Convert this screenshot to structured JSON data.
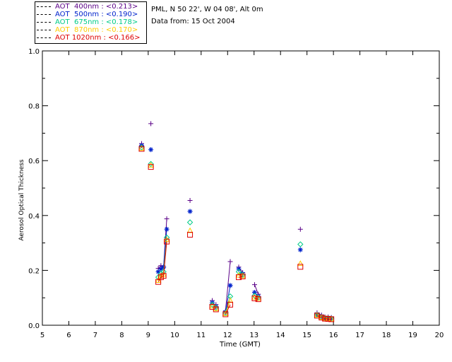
{
  "station": {
    "line1": "PML, N 50 22', W 04 08', Alt 0m",
    "line2": "Data from: 15 Oct 2004"
  },
  "legend": [
    {
      "label": "AOT  400nm : <0.213>",
      "color": "#5a0087"
    },
    {
      "label": "AOT  500nm : <0.190>",
      "color": "#0022cc"
    },
    {
      "label": "AOT  675nm : <0.178>",
      "color": "#00cc88"
    },
    {
      "label": "AOT  870nm : <0.170>",
      "color": "#ffcc00"
    },
    {
      "label": "AOT 1020nm : <0.166>",
      "color": "#dd0000"
    }
  ],
  "chart_data": {
    "type": "scatter",
    "xlabel": "Time (GMT)",
    "ylabel": "Aerosol Optical Thickness",
    "xlim": [
      5,
      20
    ],
    "ylim": [
      0.0,
      1.0
    ],
    "xticks": [
      "5",
      "6",
      "7",
      "8",
      "9",
      "10",
      "11",
      "12",
      "13",
      "14",
      "15",
      "16",
      "17",
      "18",
      "19",
      "20"
    ],
    "yticks": [
      "0.0",
      "0.2",
      "0.4",
      "0.6",
      "0.8",
      "1.0"
    ],
    "x": [
      8.75,
      9.1,
      9.38,
      9.48,
      9.58,
      9.7,
      10.58,
      11.42,
      11.56,
      11.92,
      12.1,
      12.42,
      12.57,
      13.02,
      13.16,
      14.75,
      15.38,
      15.55,
      15.68,
      15.8,
      15.92
    ],
    "series": [
      {
        "name": "AOT  400nm",
        "marker": "plus",
        "values": [
          0.662,
          0.735,
          0.207,
          0.217,
          0.212,
          0.388,
          0.455,
          0.09,
          0.075,
          0.052,
          0.232,
          0.212,
          0.192,
          0.148,
          0.113,
          0.35,
          0.045,
          0.037,
          0.03,
          0.03,
          0.028
        ]
      },
      {
        "name": "AOT  500nm",
        "marker": "asterisk",
        "values": [
          0.655,
          0.64,
          0.195,
          0.205,
          0.212,
          0.35,
          0.415,
          0.082,
          0.068,
          0.048,
          0.145,
          0.205,
          0.187,
          0.12,
          0.105,
          0.275,
          0.04,
          0.033,
          0.027,
          0.027,
          0.026
        ]
      },
      {
        "name": "AOT  675nm",
        "marker": "diamond",
        "values": [
          0.648,
          0.588,
          0.175,
          0.188,
          0.195,
          0.32,
          0.375,
          0.075,
          0.064,
          0.044,
          0.105,
          0.195,
          0.183,
          0.108,
          0.1,
          0.295,
          0.038,
          0.03,
          0.026,
          0.025,
          0.024
        ]
      },
      {
        "name": "AOT  870nm",
        "marker": "triangle",
        "values": [
          0.645,
          0.583,
          0.163,
          0.18,
          0.185,
          0.312,
          0.345,
          0.07,
          0.06,
          0.042,
          0.09,
          0.182,
          0.18,
          0.102,
          0.098,
          0.225,
          0.037,
          0.029,
          0.025,
          0.024,
          0.023
        ]
      },
      {
        "name": "AOT 1020nm",
        "marker": "square",
        "values": [
          0.643,
          0.577,
          0.158,
          0.175,
          0.18,
          0.305,
          0.33,
          0.067,
          0.058,
          0.04,
          0.075,
          0.175,
          0.178,
          0.098,
          0.095,
          0.213,
          0.035,
          0.028,
          0.024,
          0.023,
          0.022
        ]
      }
    ],
    "connected_segments": [
      [
        2,
        5
      ],
      [
        9,
        10
      ],
      [
        11,
        12
      ],
      [
        13,
        14
      ],
      [
        16,
        20
      ]
    ]
  }
}
